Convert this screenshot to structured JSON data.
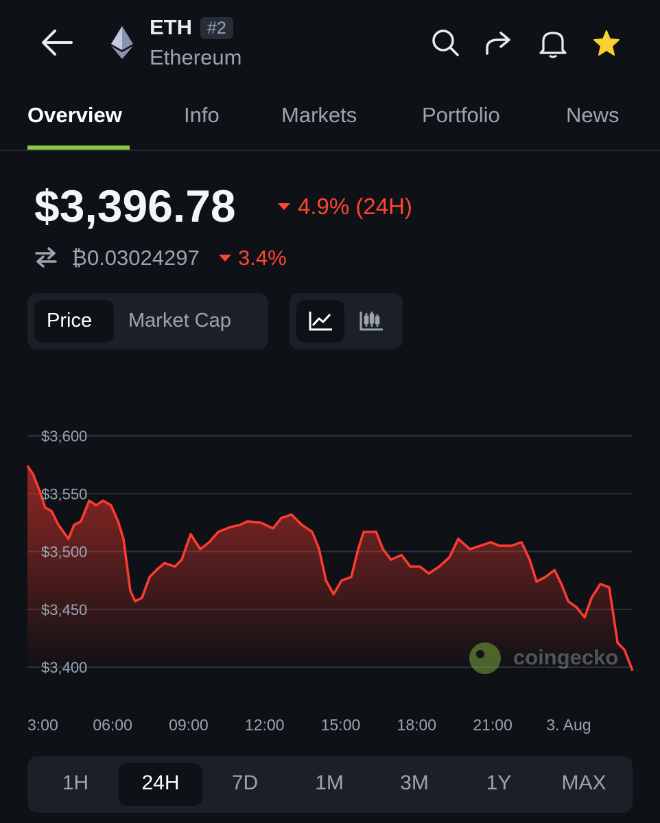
{
  "header": {
    "symbol": "ETH",
    "rank": "#2",
    "name": "Ethereum"
  },
  "tabs": [
    "Overview",
    "Info",
    "Markets",
    "Portfolio",
    "News"
  ],
  "price": {
    "usd": "$3,396.78",
    "usd_change": "4.9% (24H)",
    "btc": "₿0.03024297",
    "btc_change": "3.4%"
  },
  "chart_modes": [
    "Price",
    "Market Cap"
  ],
  "chart_data": {
    "type": "line",
    "color": "#ff3b30",
    "grid": true,
    "x": [
      2.64,
      2.86,
      3.13,
      3.34,
      3.59,
      3.86,
      4.26,
      4.48,
      4.75,
      5.08,
      5.35,
      5.62,
      5.94,
      6.22,
      6.43,
      6.7,
      6.89,
      7.16,
      7.46,
      7.73,
      8.05,
      8.46,
      8.73,
      9.08,
      9.46,
      9.81,
      10.17,
      10.63,
      11.03,
      11.31,
      11.85,
      12.33,
      12.66,
      13.06,
      13.47,
      13.88,
      14.15,
      14.42,
      14.72,
      15.04,
      15.42,
      15.69,
      15.91,
      16.4,
      16.67,
      16.99,
      17.4,
      17.75,
      18.13,
      18.48,
      18.89,
      19.29,
      19.64,
      20.1,
      20.51,
      20.92,
      21.27,
      21.73,
      22.14,
      22.46,
      22.73,
      23.08,
      23.44,
      23.71,
      23.98,
      24.3,
      24.63,
      24.9,
      25.25,
      25.6,
      25.93,
      26.2,
      26.52
    ],
    "values": [
      3574,
      3567,
      3552,
      3538,
      3535,
      3523,
      3511,
      3523,
      3526,
      3544,
      3540,
      3544,
      3540,
      3526,
      3511,
      3466,
      3457,
      3460,
      3478,
      3484,
      3490,
      3487,
      3493,
      3515,
      3502,
      3508,
      3517,
      3521,
      3523,
      3526,
      3525,
      3520,
      3529,
      3532,
      3523,
      3517,
      3502,
      3475,
      3463,
      3475,
      3478,
      3502,
      3517,
      3517,
      3502,
      3493,
      3497,
      3487,
      3487,
      3481,
      3487,
      3495,
      3511,
      3502,
      3505,
      3508,
      3505,
      3505,
      3508,
      3493,
      3474,
      3478,
      3484,
      3472,
      3457,
      3452,
      3443,
      3460,
      3472,
      3469,
      3421,
      3415,
      3397
    ],
    "xlim": [
      2.64,
      26.52
    ],
    "xticks": [
      {
        "value": 3,
        "label": "3:00"
      },
      {
        "value": 6,
        "label": "06:00"
      },
      {
        "value": 9,
        "label": "09:00"
      },
      {
        "value": 12,
        "label": "12:00"
      },
      {
        "value": 15,
        "label": "15:00"
      },
      {
        "value": 18,
        "label": "18:00"
      },
      {
        "value": 21,
        "label": "21:00"
      },
      {
        "value": 24,
        "label": "3. Aug"
      }
    ],
    "ylim": [
      3400,
      3600
    ],
    "yticks": [
      {
        "value": 3400,
        "label": "$3,400"
      },
      {
        "value": 3450,
        "label": "$3,450"
      },
      {
        "value": 3500,
        "label": "$3,500"
      },
      {
        "value": 3550,
        "label": "$3,550"
      },
      {
        "value": 3600,
        "label": "$3,600"
      }
    ]
  },
  "watermark": "coingecko",
  "time_ranges": [
    "1H",
    "24H",
    "7D",
    "1M",
    "3M",
    "1Y",
    "MAX"
  ]
}
